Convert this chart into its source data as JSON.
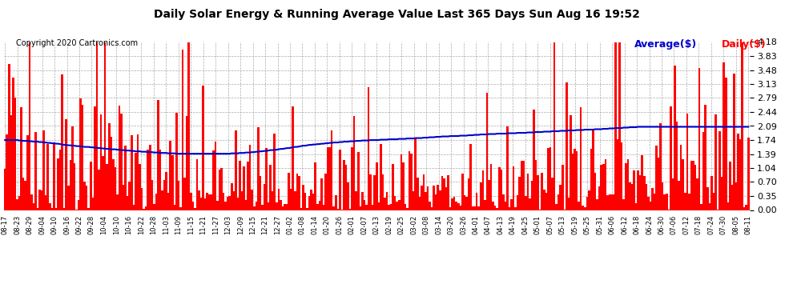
{
  "title": "Daily Solar Energy & Running Average Value Last 365 Days Sun Aug 16 19:52",
  "copyright": "Copyright 2020 Cartronics.com",
  "legend_avg": "Average($)",
  "legend_daily": "Daily($)",
  "bar_color": "#ff0000",
  "avg_line_color": "#0000cc",
  "background_color": "#ffffff",
  "plot_bg_color": "#ffffff",
  "grid_color": "#aaaaaa",
  "ylim": [
    0.0,
    4.18
  ],
  "yticks": [
    0.0,
    0.35,
    0.7,
    1.04,
    1.39,
    1.74,
    2.09,
    2.44,
    2.79,
    3.13,
    3.48,
    3.83,
    4.18
  ],
  "x_labels": [
    "08-17",
    "08-23",
    "08-29",
    "09-04",
    "09-10",
    "09-16",
    "09-22",
    "09-28",
    "10-04",
    "10-10",
    "10-16",
    "10-22",
    "10-28",
    "11-03",
    "11-09",
    "11-15",
    "11-21",
    "11-27",
    "12-03",
    "12-09",
    "12-15",
    "12-21",
    "12-27",
    "01-02",
    "01-08",
    "01-14",
    "01-20",
    "01-26",
    "02-01",
    "02-07",
    "02-13",
    "02-19",
    "02-25",
    "03-02",
    "03-08",
    "03-14",
    "03-20",
    "03-26",
    "04-01",
    "04-07",
    "04-13",
    "04-19",
    "04-25",
    "05-01",
    "05-07",
    "05-13",
    "05-19",
    "05-25",
    "05-31",
    "06-06",
    "06-12",
    "06-18",
    "06-24",
    "06-30",
    "07-06",
    "07-12",
    "07-18",
    "07-24",
    "07-30",
    "08-05",
    "08-11"
  ],
  "num_bars": 365,
  "avg_values": [
    1.74,
    1.74,
    1.74,
    1.74,
    1.74,
    1.74,
    1.74,
    1.73,
    1.73,
    1.72,
    1.72,
    1.72,
    1.71,
    1.71,
    1.7,
    1.7,
    1.7,
    1.69,
    1.69,
    1.68,
    1.68,
    1.67,
    1.67,
    1.66,
    1.66,
    1.65,
    1.65,
    1.64,
    1.63,
    1.62,
    1.62,
    1.61,
    1.61,
    1.6,
    1.6,
    1.59,
    1.59,
    1.58,
    1.58,
    1.57,
    1.57,
    1.57,
    1.56,
    1.56,
    1.55,
    1.55,
    1.54,
    1.54,
    1.53,
    1.53,
    1.52,
    1.52,
    1.51,
    1.51,
    1.51,
    1.5,
    1.5,
    1.49,
    1.49,
    1.48,
    1.48,
    1.48,
    1.47,
    1.47,
    1.46,
    1.46,
    1.46,
    1.45,
    1.45,
    1.45,
    1.44,
    1.44,
    1.44,
    1.43,
    1.43,
    1.43,
    1.42,
    1.42,
    1.42,
    1.42,
    1.41,
    1.41,
    1.41,
    1.41,
    1.4,
    1.4,
    1.4,
    1.4,
    1.4,
    1.4,
    1.4,
    1.4,
    1.4,
    1.4,
    1.4,
    1.4,
    1.4,
    1.4,
    1.4,
    1.4,
    1.4,
    1.4,
    1.4,
    1.4,
    1.4,
    1.4,
    1.4,
    1.4,
    1.4,
    1.4,
    1.4,
    1.41,
    1.41,
    1.41,
    1.41,
    1.42,
    1.42,
    1.42,
    1.43,
    1.43,
    1.43,
    1.44,
    1.44,
    1.45,
    1.45,
    1.46,
    1.46,
    1.47,
    1.47,
    1.48,
    1.49,
    1.49,
    1.5,
    1.5,
    1.51,
    1.52,
    1.52,
    1.53,
    1.54,
    1.54,
    1.55,
    1.56,
    1.57,
    1.57,
    1.58,
    1.59,
    1.6,
    1.6,
    1.61,
    1.62,
    1.62,
    1.63,
    1.63,
    1.64,
    1.64,
    1.65,
    1.65,
    1.66,
    1.66,
    1.67,
    1.67,
    1.68,
    1.68,
    1.68,
    1.69,
    1.69,
    1.7,
    1.7,
    1.7,
    1.71,
    1.71,
    1.71,
    1.72,
    1.72,
    1.72,
    1.73,
    1.73,
    1.73,
    1.73,
    1.74,
    1.74,
    1.74,
    1.74,
    1.74,
    1.75,
    1.75,
    1.75,
    1.75,
    1.76,
    1.76,
    1.76,
    1.76,
    1.76,
    1.77,
    1.77,
    1.77,
    1.77,
    1.78,
    1.78,
    1.78,
    1.78,
    1.79,
    1.79,
    1.79,
    1.79,
    1.8,
    1.8,
    1.8,
    1.81,
    1.81,
    1.81,
    1.82,
    1.82,
    1.82,
    1.83,
    1.83,
    1.83,
    1.83,
    1.84,
    1.84,
    1.84,
    1.84,
    1.84,
    1.85,
    1.85,
    1.85,
    1.85,
    1.86,
    1.86,
    1.86,
    1.87,
    1.87,
    1.87,
    1.88,
    1.88,
    1.88,
    1.88,
    1.89,
    1.89,
    1.89,
    1.89,
    1.9,
    1.9,
    1.9,
    1.9,
    1.9,
    1.91,
    1.91,
    1.91,
    1.91,
    1.91,
    1.92,
    1.92,
    1.92,
    1.92,
    1.92,
    1.93,
    1.93,
    1.93,
    1.93,
    1.94,
    1.94,
    1.94,
    1.94,
    1.95,
    1.95,
    1.95,
    1.95,
    1.96,
    1.96,
    1.96,
    1.96,
    1.97,
    1.97,
    1.97,
    1.97,
    1.98,
    1.98,
    1.98,
    1.98,
    1.99,
    1.99,
    1.99,
    1.99,
    2.0,
    2.0,
    2.0,
    2.0,
    2.0,
    2.01,
    2.01,
    2.01,
    2.01,
    2.02,
    2.02,
    2.02,
    2.03,
    2.03,
    2.03,
    2.04,
    2.04,
    2.04,
    2.04,
    2.05,
    2.05,
    2.05,
    2.06,
    2.06,
    2.06,
    2.06,
    2.07,
    2.07,
    2.07,
    2.07,
    2.07,
    2.07,
    2.07,
    2.07,
    2.07,
    2.07,
    2.07,
    2.07,
    2.07,
    2.07,
    2.07,
    2.07,
    2.07,
    2.07,
    2.07,
    2.07,
    2.07,
    2.07,
    2.07,
    2.07,
    2.07,
    2.07,
    2.07,
    2.07,
    2.07,
    2.07,
    2.07,
    2.07,
    2.07,
    2.07,
    2.07,
    2.07,
    2.07,
    2.07,
    2.07,
    2.07,
    2.07,
    2.07,
    2.07,
    2.07,
    2.07,
    2.07,
    2.07,
    2.07,
    2.07,
    2.07,
    2.07,
    2.07,
    2.07,
    2.07,
    2.07,
    2.07,
    2.07,
    2.07,
    2.07,
    2.07,
    2.07
  ]
}
